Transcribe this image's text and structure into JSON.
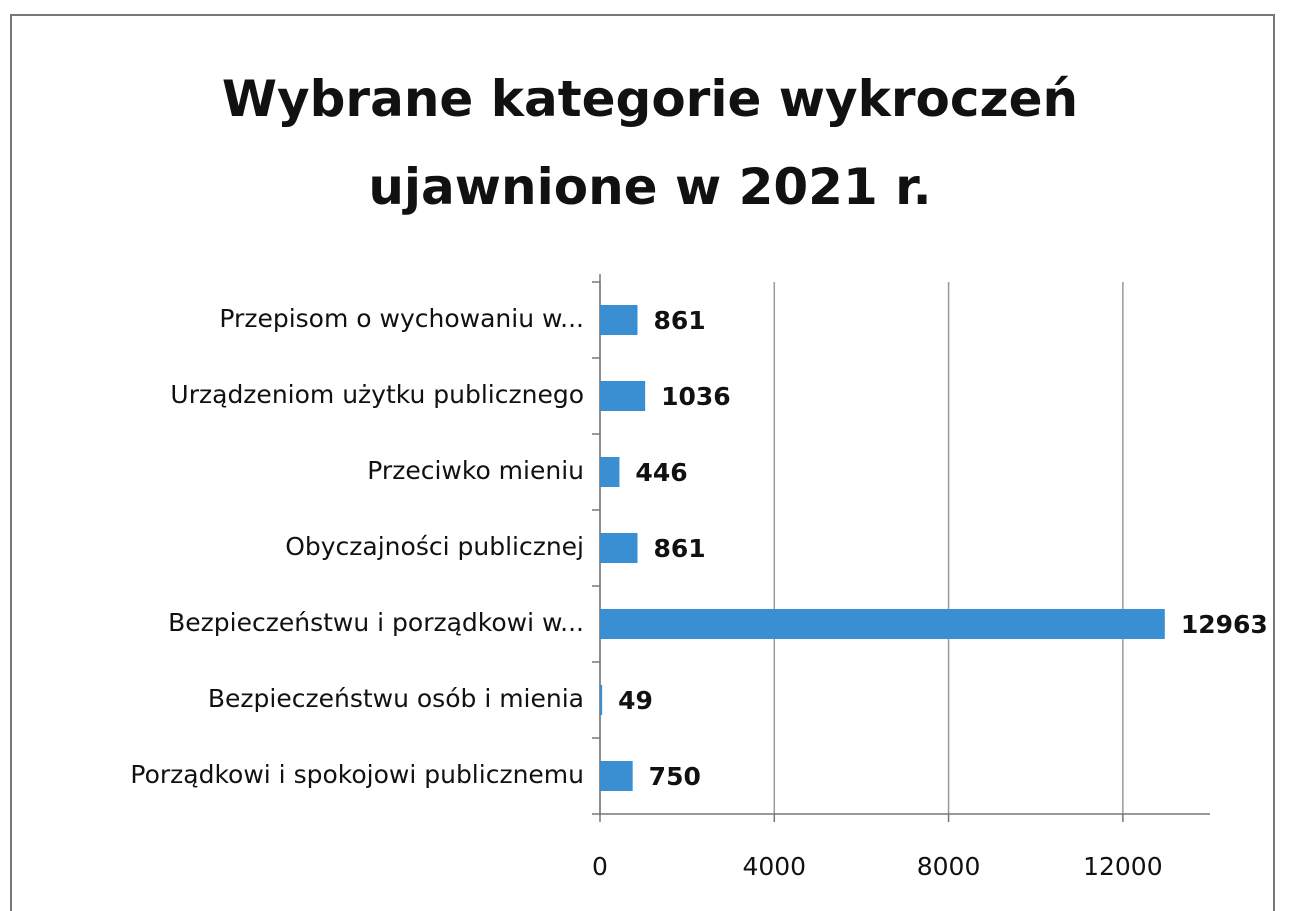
{
  "chart_data": {
    "type": "bar",
    "orientation": "horizontal",
    "title": "Wybrane kategorie wykroczeń ujawnione w 2021 r.",
    "categories": [
      "Przepisom o wychowaniu w...",
      "Urządzeniom użytku publicznego",
      "Przeciwko mieniu",
      "Obyczajności publicznej",
      "Bezpieczeństwu i porządkowi w...",
      "Bezpieczeństwu osób i mienia",
      "Porządkowi i spokojowi publicznemu"
    ],
    "values": [
      861,
      1036,
      446,
      861,
      12963,
      49,
      750
    ],
    "color": "#3a8fd2",
    "xlim": [
      0,
      14000
    ],
    "xticks": [
      0,
      4000,
      8000,
      12000
    ],
    "grid": true
  }
}
